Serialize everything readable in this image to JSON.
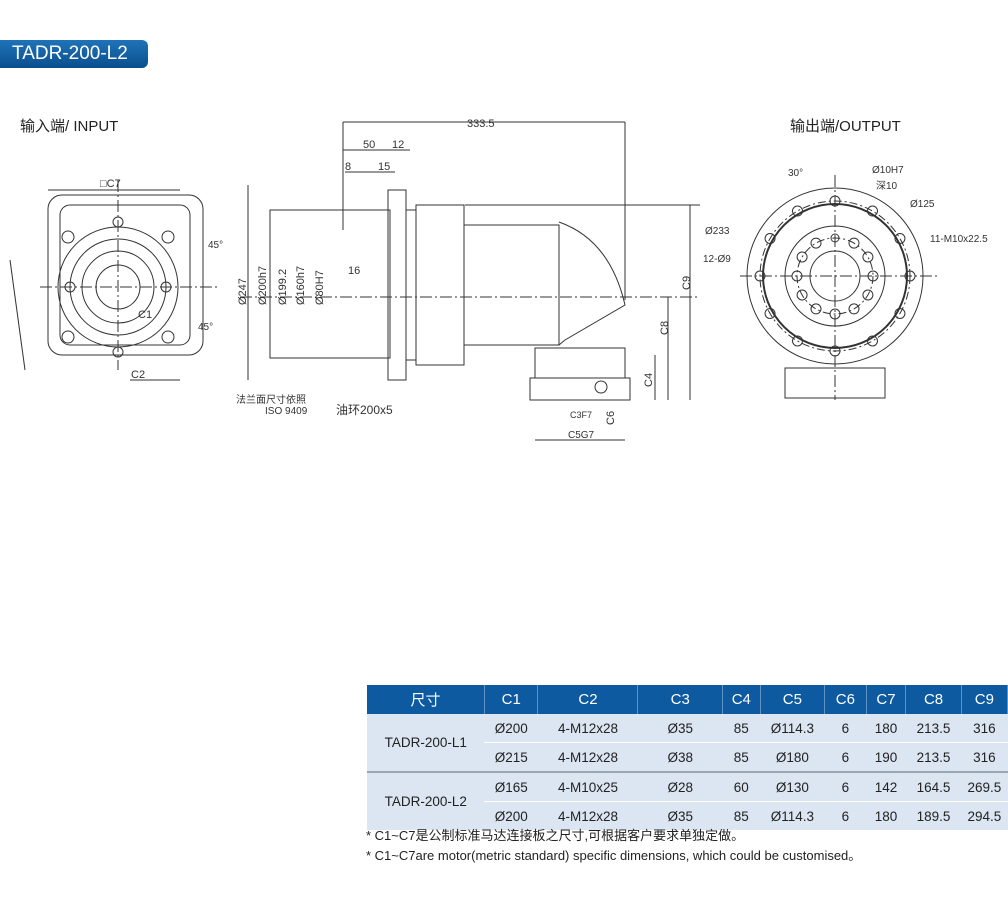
{
  "title": "TADR-200-L2",
  "input_label": "输入端/ INPUT",
  "output_label": "输出端/OUTPUT",
  "input_view": {
    "c7": "□C7",
    "c2": "C2",
    "c1": "C1",
    "angle1": "45°",
    "angle2": "45°"
  },
  "side_view": {
    "d333": "333.5",
    "d50": "50",
    "d12": "12",
    "d8": "8",
    "d15": "15",
    "d16": "16",
    "d247": "Ø247",
    "d200": "Ø200h7",
    "d199": "Ø199.2",
    "d160": "Ø160h7",
    "d80": "Ø80H7",
    "flange_note1": "法兰面尺寸依照",
    "flange_note2": "ISO 9409",
    "oring": "油环200x5",
    "c9": "C9",
    "c8": "C8",
    "c4": "C4",
    "c6": "C6",
    "c3": "C3F7",
    "c5": "C5G7"
  },
  "output_view": {
    "angle": "30°",
    "pin": "Ø10H7",
    "depth": "深10",
    "d125": "Ø125",
    "d233": "Ø233",
    "holes": "12-Ø9",
    "threads": "11-M10x22.5"
  },
  "table": {
    "headers": [
      "尺寸",
      "C1",
      "C2",
      "C3",
      "C4",
      "C5",
      "C6",
      "C7",
      "C8",
      "C9"
    ],
    "groups": [
      {
        "model": "TADR-200-L1",
        "rows": [
          [
            "Ø200",
            "4-M12x28",
            "Ø35",
            "85",
            "Ø114.3",
            "6",
            "180",
            "213.5",
            "316"
          ],
          [
            "Ø215",
            "4-M12x28",
            "Ø38",
            "85",
            "Ø180",
            "6",
            "190",
            "213.5",
            "316"
          ]
        ]
      },
      {
        "model": "TADR-200-L2",
        "rows": [
          [
            "Ø165",
            "4-M10x25",
            "Ø28",
            "60",
            "Ø130",
            "6",
            "142",
            "164.5",
            "269.5"
          ],
          [
            "Ø200",
            "4-M12x28",
            "Ø35",
            "85",
            "Ø114.3",
            "6",
            "180",
            "189.5",
            "294.5"
          ]
        ]
      }
    ]
  },
  "notes": [
    "* C1~C7是公制标准马达连接板之尺寸,可根据客户要求单独定做。",
    "* C1~C7are motor(metric standard)  specific dimensions, which could be customised。"
  ],
  "colors": {
    "header": "#0d5aa0",
    "cell": "#dbe6f2",
    "badge": "#1565a8"
  }
}
